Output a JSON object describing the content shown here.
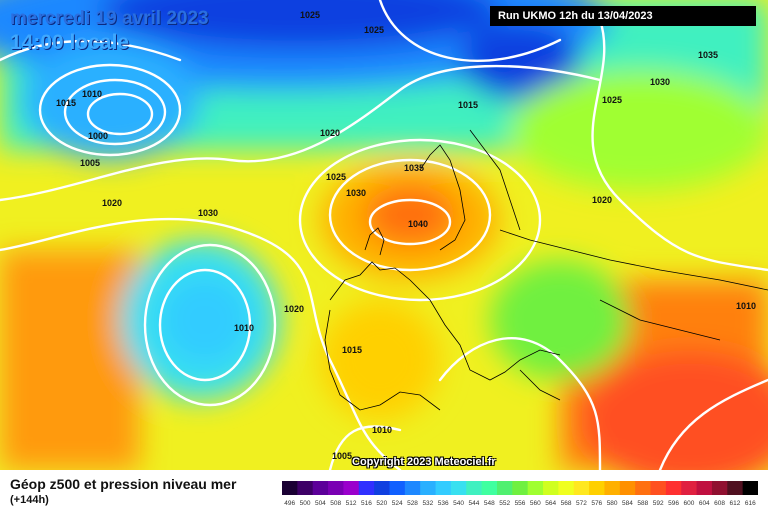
{
  "header": {
    "date_title": "mercredi 19 avril 2023",
    "time_local": "14:00 locale",
    "run_info": "Run UKMO 12h du 13/04/2023"
  },
  "footer": {
    "title": "Géop z500 et pression niveau mer",
    "lead_time": "(+144h)",
    "copyright": "Copyright 2023 Meteociel.fr"
  },
  "legend": {
    "ticks": [
      "496",
      "500",
      "504",
      "508",
      "512",
      "516",
      "520",
      "524",
      "528",
      "532",
      "536",
      "540",
      "544",
      "548",
      "552",
      "556",
      "560",
      "564",
      "568",
      "572",
      "576",
      "580",
      "584",
      "588",
      "592",
      "596",
      "600",
      "604",
      "608",
      "612",
      "616"
    ],
    "colors": [
      "#1a0033",
      "#3d0066",
      "#5c0099",
      "#7a00b3",
      "#9a00cc",
      "#3030ff",
      "#1040e0",
      "#1060ff",
      "#1e88ff",
      "#2ab0ff",
      "#33ccff",
      "#38e0f0",
      "#40f0c0",
      "#40ffa0",
      "#50f070",
      "#70f040",
      "#a0ff30",
      "#d0ff20",
      "#f0ff20",
      "#ffe820",
      "#ffd000",
      "#ffb000",
      "#ff9000",
      "#ff7010",
      "#ff5020",
      "#ff3030",
      "#e02040",
      "#c01040",
      "#901030",
      "#501020",
      "#000000"
    ]
  },
  "isobars": [
    {
      "label": "1025"
    },
    {
      "label": "1025"
    },
    {
      "label": "1010"
    },
    {
      "label": "1015"
    },
    {
      "label": "1000"
    },
    {
      "label": "1005"
    },
    {
      "label": "1020"
    },
    {
      "label": "1030"
    },
    {
      "label": "1020"
    },
    {
      "label": "1025"
    },
    {
      "label": "1030"
    },
    {
      "label": "1035"
    },
    {
      "label": "1040"
    },
    {
      "label": "1015"
    },
    {
      "label": "1025"
    },
    {
      "label": "1030"
    },
    {
      "label": "1035"
    },
    {
      "label": "1020"
    },
    {
      "label": "1010"
    },
    {
      "label": "1020"
    },
    {
      "label": "1010"
    },
    {
      "label": "1015"
    },
    {
      "label": "1005"
    },
    {
      "label": "1010"
    }
  ]
}
